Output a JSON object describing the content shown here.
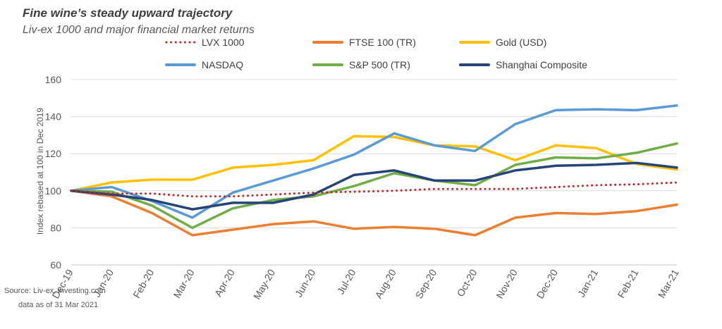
{
  "chart_data": {
    "type": "line",
    "title": "Fine wine’s steady upward trajectory",
    "subtitle": "Liv-ex 1000 and major financial market returns",
    "ylabel": "Index rebased at 100 in Dec 2019",
    "xlabel": "",
    "ylim": [
      60,
      160
    ],
    "yticks": [
      60,
      80,
      100,
      120,
      140,
      160
    ],
    "grid": true,
    "legend_position": "top",
    "categories": [
      "Dec-19",
      "Jan-20",
      "Feb-20",
      "Mar-20",
      "Apr-20",
      "May-20",
      "Jun-20",
      "Jul-20",
      "Aug-20",
      "Sep-20",
      "Oct-20",
      "Nov-20",
      "Dec-20",
      "Jan-21",
      "Feb-21",
      "Mar-21"
    ],
    "series": [
      {
        "name": "LVX 1000",
        "color": "#c0282a",
        "dash": true,
        "values": [
          100,
          98.5,
          98.5,
          97,
          97,
          98,
          99,
          99.5,
          100,
          101,
          101,
          101,
          102,
          103,
          103.5,
          104.5
        ]
      },
      {
        "name": "FTSE 100 (TR)",
        "color": "#ed7d31",
        "dash": false,
        "values": [
          100,
          97,
          88,
          76,
          79,
          82,
          83.5,
          79.5,
          80.5,
          79.5,
          76,
          85.5,
          88,
          87.5,
          89,
          92.5
        ]
      },
      {
        "name": "Gold (USD)",
        "color": "#ffc000",
        "dash": false,
        "values": [
          100,
          104.5,
          106,
          106,
          112.5,
          114,
          116.5,
          129.5,
          129,
          124.5,
          124,
          116.5,
          124.5,
          123,
          114.5,
          111.5
        ]
      },
      {
        "name": "NASDAQ",
        "color": "#5b9bd5",
        "dash": false,
        "values": [
          100,
          102,
          94.5,
          85.5,
          99,
          105.5,
          112,
          119.5,
          131,
          124.5,
          121.5,
          136,
          143.5,
          144,
          143.5,
          146
        ]
      },
      {
        "name": "S&P 500 (TR)",
        "color": "#70ad47",
        "dash": false,
        "values": [
          100,
          99.5,
          92,
          80,
          90.5,
          95,
          97,
          102.5,
          109.5,
          105.5,
          103,
          114,
          118,
          117.5,
          120.5,
          125.5
        ]
      },
      {
        "name": "Shanghai Composite",
        "color": "#264478",
        "dash": false,
        "values": [
          100,
          98,
          95,
          90,
          93.5,
          93.5,
          98,
          108.5,
          111,
          105.5,
          105.5,
          111,
          113.5,
          114,
          115,
          112.5
        ]
      }
    ]
  },
  "source": {
    "line1": "Source: Liv-ex, investing.com",
    "line2": "data as of 31 Mar 2021"
  }
}
